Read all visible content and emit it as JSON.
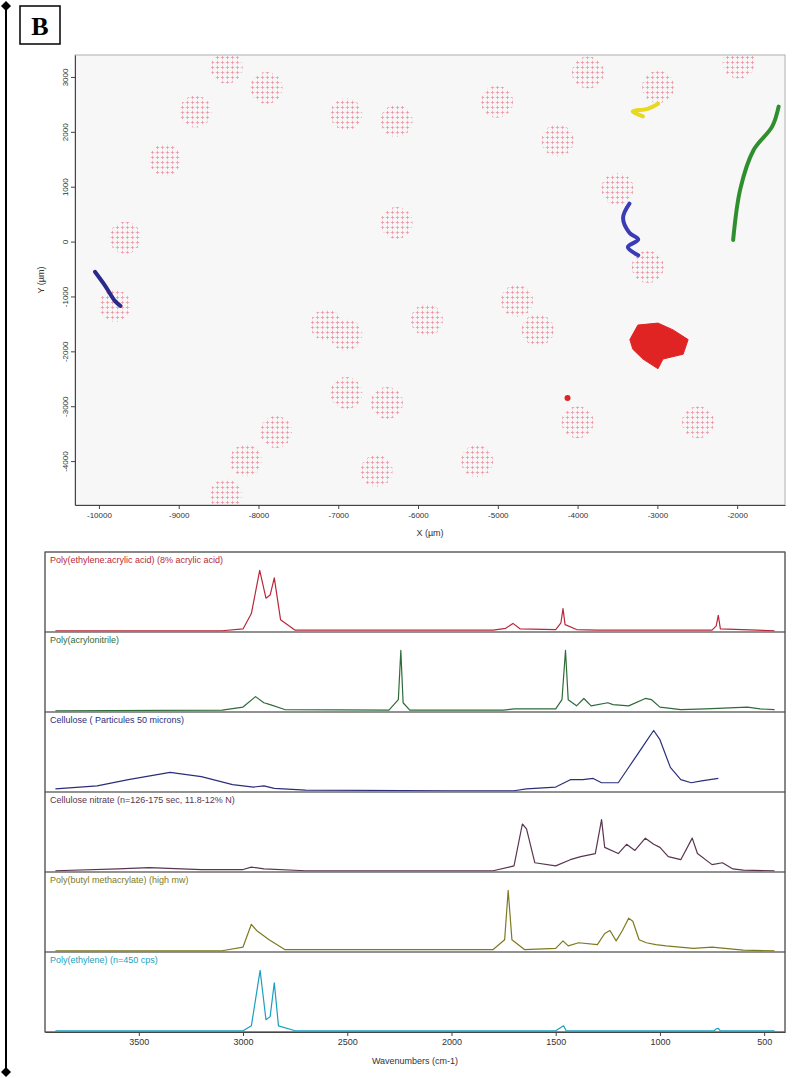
{
  "panel_label": "B",
  "chart_data": [
    {
      "type": "map",
      "x_label": "X (µm)",
      "y_label": "Y (µm)",
      "xlim": [
        -10300,
        -1400
      ],
      "ylim": [
        -4800,
        3400
      ],
      "xticks": [
        -10000,
        -9000,
        -8000,
        -7000,
        -6000,
        -5000,
        -4000,
        -3000,
        -2000
      ],
      "yticks": [
        -4000,
        -3000,
        -2000,
        -1000,
        0,
        1000,
        2000,
        3000
      ],
      "grid": false,
      "background_points": {
        "color": "#ee97a4",
        "x": [
          -8400,
          -7900,
          -6900,
          -6270,
          -9170,
          -4250,
          -3500,
          -6270,
          -7150,
          -6900,
          -5890,
          -4500,
          -6900,
          -6390,
          -7780,
          -5260,
          -8410,
          -6520,
          -4000,
          -2490,
          -3120,
          -4760,
          -9670,
          -2990,
          -1980,
          -5010,
          -3870,
          -8790,
          -9800,
          -8160
        ],
        "values": [
          3170,
          2800,
          2320,
          2200,
          1490,
          1840,
          960,
          340,
          -1520,
          -1700,
          -1430,
          -1610,
          -2760,
          -2940,
          -3470,
          -4000,
          -4620,
          -4180,
          -3290,
          -3290,
          -460,
          -1080,
          70,
          2820,
          3260,
          2550,
          3080,
          2370,
          -1170,
          -3990
        ]
      },
      "series": [
        {
          "type": "line",
          "color": "#e8d81e",
          "x": [
            -3180,
            -3310,
            -3120,
            -2990
          ],
          "values": [
            2280,
            2370,
            2420,
            2510
          ]
        },
        {
          "type": "line",
          "color": "#2f8f2f",
          "x": [
            -1480,
            -1560,
            -1795,
            -1960,
            -2050
          ],
          "values": [
            2460,
            2100,
            1665,
            960,
            30
          ]
        },
        {
          "type": "line",
          "color": "#3b3bb5",
          "x": [
            -3350,
            -3430,
            -3350,
            -3240,
            -3370,
            -3240
          ],
          "values": [
            690,
            430,
            160,
            40,
            -100,
            -250
          ]
        },
        {
          "type": "line",
          "color": "#2a2a8c",
          "x": [
            -10050,
            -9920,
            -9800,
            -9730
          ],
          "values": [
            -550,
            -810,
            -1080,
            -1170
          ]
        },
        {
          "type": "polygon",
          "color": "#e02424",
          "x": [
            -3244,
            -2992,
            -2803,
            -2614,
            -2677,
            -2929,
            -2992,
            -3181,
            -3307,
            -3345
          ],
          "values": [
            -1521,
            -1485,
            -1609,
            -1786,
            -2052,
            -2140,
            -2317,
            -2140,
            -1963,
            -1786
          ]
        },
        {
          "type": "scatter",
          "color": "#e02424",
          "x": [
            -4126
          ],
          "values": [
            -2848
          ]
        }
      ]
    },
    {
      "type": "line",
      "x_label": "Wavenumbers (cm-1)",
      "xlim": [
        3950,
        400
      ],
      "xticks": [
        3500,
        3000,
        2500,
        2000,
        1500,
        1000,
        500
      ],
      "ylim": [
        0,
        1.3
      ],
      "tick_labels": "x",
      "series": [
        {
          "name": "Poly(ethylene:acrylic acid) (8% acrylic acid)",
          "color": "#b8283a",
          "x": [
            3900,
            3100,
            3000,
            2960,
            2920,
            2890,
            2870,
            2850,
            2820,
            2750,
            1800,
            1740,
            1705,
            1670,
            1500,
            1475,
            1465,
            1455,
            1400,
            1300,
            750,
            730,
            720,
            710,
            450
          ],
          "values": [
            0.02,
            0.02,
            0.05,
            0.3,
            1.0,
            0.55,
            0.6,
            0.88,
            0.2,
            0.03,
            0.03,
            0.06,
            0.14,
            0.05,
            0.04,
            0.15,
            0.38,
            0.12,
            0.04,
            0.03,
            0.03,
            0.1,
            0.27,
            0.05,
            0.02
          ]
        },
        {
          "name": "Poly(acrylonitrile)",
          "color": "#2e6b3a",
          "x": [
            3900,
            3100,
            3000,
            2940,
            2900,
            2870,
            2800,
            2300,
            2255,
            2243,
            2232,
            2200,
            1750,
            1700,
            1500,
            1470,
            1453,
            1440,
            1400,
            1365,
            1330,
            1250,
            1225,
            1150,
            1070,
            1040,
            1000,
            900,
            780,
            580,
            520,
            450
          ],
          "values": [
            0.02,
            0.03,
            0.08,
            0.25,
            0.15,
            0.12,
            0.04,
            0.03,
            0.2,
            1.0,
            0.15,
            0.03,
            0.03,
            0.05,
            0.05,
            0.2,
            1.0,
            0.2,
            0.1,
            0.22,
            0.1,
            0.15,
            0.12,
            0.1,
            0.22,
            0.2,
            0.08,
            0.04,
            0.05,
            0.08,
            0.05,
            0.04
          ]
        },
        {
          "name": "Cellulose ( Particules 50 microns)",
          "color": "#2b2f7a",
          "x": [
            3900,
            3700,
            3550,
            3350,
            3200,
            3050,
            2950,
            2900,
            2850,
            2700,
            2000,
            1700,
            1640,
            1500,
            1430,
            1370,
            1320,
            1280,
            1200,
            1160,
            1110,
            1060,
            1030,
            1000,
            950,
            900,
            850,
            800,
            720
          ],
          "values": [
            0.05,
            0.1,
            0.2,
            0.32,
            0.25,
            0.12,
            0.08,
            0.1,
            0.06,
            0.03,
            0.02,
            0.02,
            0.05,
            0.08,
            0.2,
            0.2,
            0.22,
            0.15,
            0.15,
            0.35,
            0.6,
            0.85,
            1.0,
            0.85,
            0.4,
            0.2,
            0.15,
            0.18,
            0.22
          ]
        },
        {
          "name": "Cellulose nitrate (n=126-175 sec, 11.8-12% N)",
          "color": "#5a3550",
          "x": [
            3900,
            3600,
            3450,
            3200,
            3000,
            2960,
            2900,
            2700,
            1800,
            1700,
            1660,
            1640,
            1600,
            1500,
            1430,
            1380,
            1310,
            1280,
            1265,
            1200,
            1160,
            1120,
            1070,
            1030,
            1000,
            960,
            900,
            845,
            820,
            750,
            700,
            650,
            600,
            450
          ],
          "values": [
            0.02,
            0.05,
            0.07,
            0.04,
            0.04,
            0.08,
            0.05,
            0.02,
            0.02,
            0.1,
            0.78,
            0.7,
            0.15,
            0.1,
            0.2,
            0.25,
            0.3,
            0.85,
            0.4,
            0.3,
            0.45,
            0.35,
            0.55,
            0.45,
            0.4,
            0.25,
            0.2,
            0.55,
            0.3,
            0.12,
            0.15,
            0.05,
            0.03,
            0.02
          ]
        },
        {
          "name": "Poly(butyl methacrylate) (high mw)",
          "color": "#7d7a1e",
          "x": [
            3900,
            3100,
            3000,
            2960,
            2935,
            2875,
            2800,
            1800,
            1745,
            1728,
            1710,
            1650,
            1500,
            1465,
            1440,
            1390,
            1300,
            1265,
            1240,
            1210,
            1180,
            1150,
            1130,
            1100,
            1065,
            1020,
            970,
            840,
            750,
            600,
            450
          ],
          "values": [
            0.02,
            0.02,
            0.08,
            0.45,
            0.35,
            0.2,
            0.04,
            0.04,
            0.2,
            1.0,
            0.2,
            0.04,
            0.06,
            0.18,
            0.1,
            0.15,
            0.12,
            0.3,
            0.35,
            0.18,
            0.35,
            0.55,
            0.5,
            0.2,
            0.15,
            0.12,
            0.1,
            0.06,
            0.08,
            0.03,
            0.02
          ]
        },
        {
          "name": "Poly(ethylene) (n=450 cps)",
          "color": "#1a9fc0",
          "x": [
            3900,
            3000,
            2960,
            2918,
            2890,
            2870,
            2850,
            2830,
            2750,
            1500,
            1472,
            1462,
            1450,
            740,
            730,
            720,
            710,
            450
          ],
          "values": [
            0.02,
            0.02,
            0.1,
            1.0,
            0.2,
            0.25,
            0.8,
            0.1,
            0.02,
            0.02,
            0.08,
            0.1,
            0.02,
            0.02,
            0.05,
            0.06,
            0.02,
            0.02
          ]
        }
      ]
    }
  ]
}
